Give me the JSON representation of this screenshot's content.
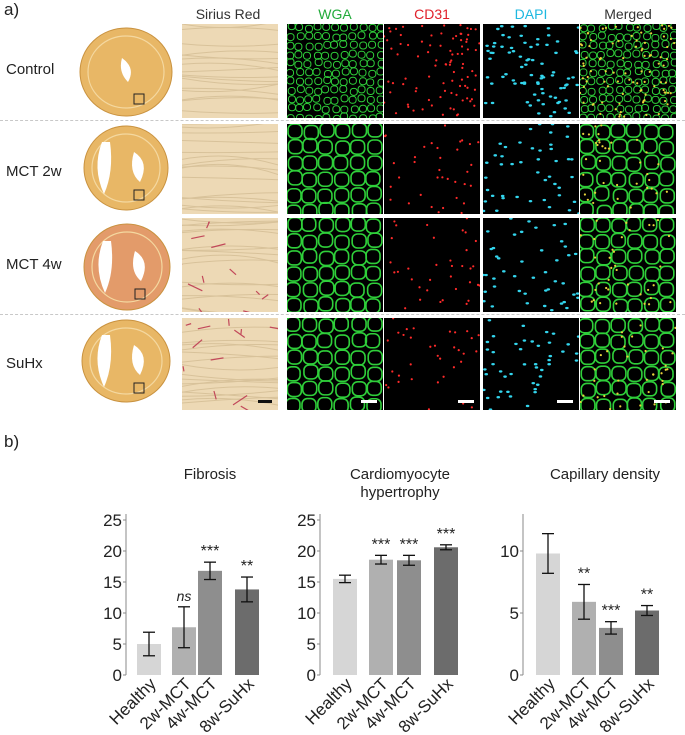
{
  "panel_a_label": "a)",
  "panel_b_label": "b)",
  "column_headers": [
    "Sirius Red",
    "WGA",
    "CD31",
    "DAPI",
    "Merged"
  ],
  "header_colors": [
    "#333333",
    "#22aa3a",
    "#e0202a",
    "#1eb8e0",
    "#333333"
  ],
  "rows": [
    "Control",
    "MCT 2w",
    "MCT 4w",
    "SuHx"
  ],
  "colors": {
    "wga": "#2fcf3a",
    "cd31": "#ff2a2a",
    "dapi": "#33d6ee",
    "tissue": "#e8b766",
    "sirius": "#edd9b5",
    "fibrosis": "#c2485a",
    "bar_healthy": "#d6d6d6",
    "bar_2w": "#b0b0b0",
    "bar_4w": "#8e8e8e",
    "bar_8w": "#6c6c6c"
  },
  "chart_data": [
    {
      "type": "bar",
      "title": "Fibrosis",
      "categories": [
        "Healthy",
        "2w-MCT",
        "4w-MCT",
        "8w-SuHx"
      ],
      "values": [
        5.0,
        7.7,
        16.8,
        13.8
      ],
      "errors": [
        1.9,
        3.3,
        1.4,
        2.0
      ],
      "annotations": [
        "",
        "ns",
        "***",
        "**"
      ],
      "ylim": [
        0,
        25
      ],
      "yticks": [
        0,
        5,
        10,
        15,
        20,
        25
      ]
    },
    {
      "type": "bar",
      "title": "Cardiomyocyte hypertrophy",
      "categories": [
        "Healthy",
        "2w-MCT",
        "4w-MCT",
        "8w-SuHx"
      ],
      "values": [
        15.5,
        18.6,
        18.5,
        20.6
      ],
      "errors": [
        0.6,
        0.7,
        0.8,
        0.4
      ],
      "annotations": [
        "",
        "***",
        "***",
        "***"
      ],
      "ylim": [
        0,
        25
      ],
      "yticks": [
        0,
        5,
        10,
        15,
        20,
        25
      ]
    },
    {
      "type": "bar",
      "title": "Capillary density",
      "categories": [
        "Healthy",
        "2w-MCT",
        "4w-MCT",
        "8w-SuHx"
      ],
      "values": [
        9.8,
        5.9,
        3.8,
        5.2
      ],
      "errors": [
        1.6,
        1.4,
        0.5,
        0.4
      ],
      "annotations": [
        "",
        "**",
        "***",
        "**"
      ],
      "ylim": [
        0,
        12.5
      ],
      "yticks": [
        0,
        5,
        10
      ]
    }
  ]
}
